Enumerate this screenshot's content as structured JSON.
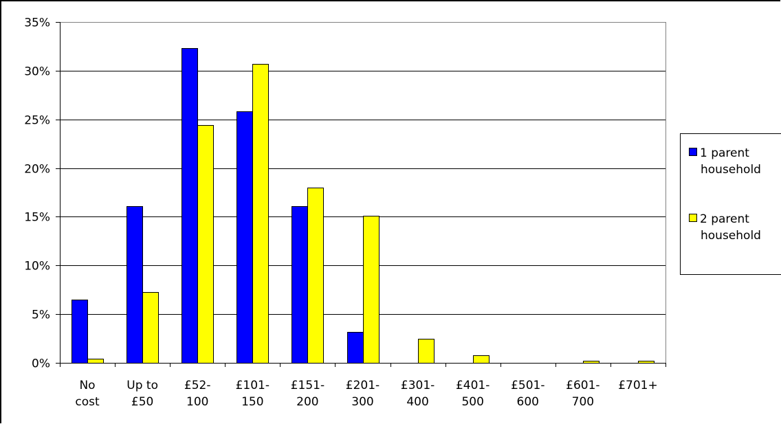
{
  "chart_data": {
    "type": "bar",
    "title": "",
    "xlabel": "",
    "ylabel": "",
    "ylim": [
      0,
      35
    ],
    "y_ticks": [
      "0%",
      "5%",
      "10%",
      "15%",
      "20%",
      "25%",
      "30%",
      "35%"
    ],
    "y_tick_values": [
      0,
      5,
      10,
      15,
      20,
      25,
      30,
      35
    ],
    "categories": [
      [
        "No",
        "cost"
      ],
      [
        "Up to",
        "£50"
      ],
      [
        "£52-",
        "100"
      ],
      [
        "£101-",
        "150"
      ],
      [
        "£151-",
        "200"
      ],
      [
        "£201-",
        "300"
      ],
      [
        "£301-",
        "400"
      ],
      [
        "£401-",
        "500"
      ],
      [
        "£501-",
        "600"
      ],
      [
        "£601-",
        "700"
      ],
      [
        "£701+"
      ]
    ],
    "series": [
      {
        "name": "1 parent household",
        "name_lines": [
          "1 parent",
          "household"
        ],
        "color": "#0000ff",
        "values": [
          6.5,
          16.1,
          32.3,
          25.8,
          16.1,
          3.2,
          0,
          0,
          0,
          0,
          0
        ]
      },
      {
        "name": "2 parent household",
        "name_lines": [
          "2 parent",
          "household"
        ],
        "color": "#ffff00",
        "values": [
          0.4,
          7.3,
          24.4,
          30.7,
          18.0,
          15.1,
          2.5,
          0.8,
          0,
          0.2,
          0.2
        ]
      }
    ],
    "grid": true,
    "legend_position": "right"
  }
}
